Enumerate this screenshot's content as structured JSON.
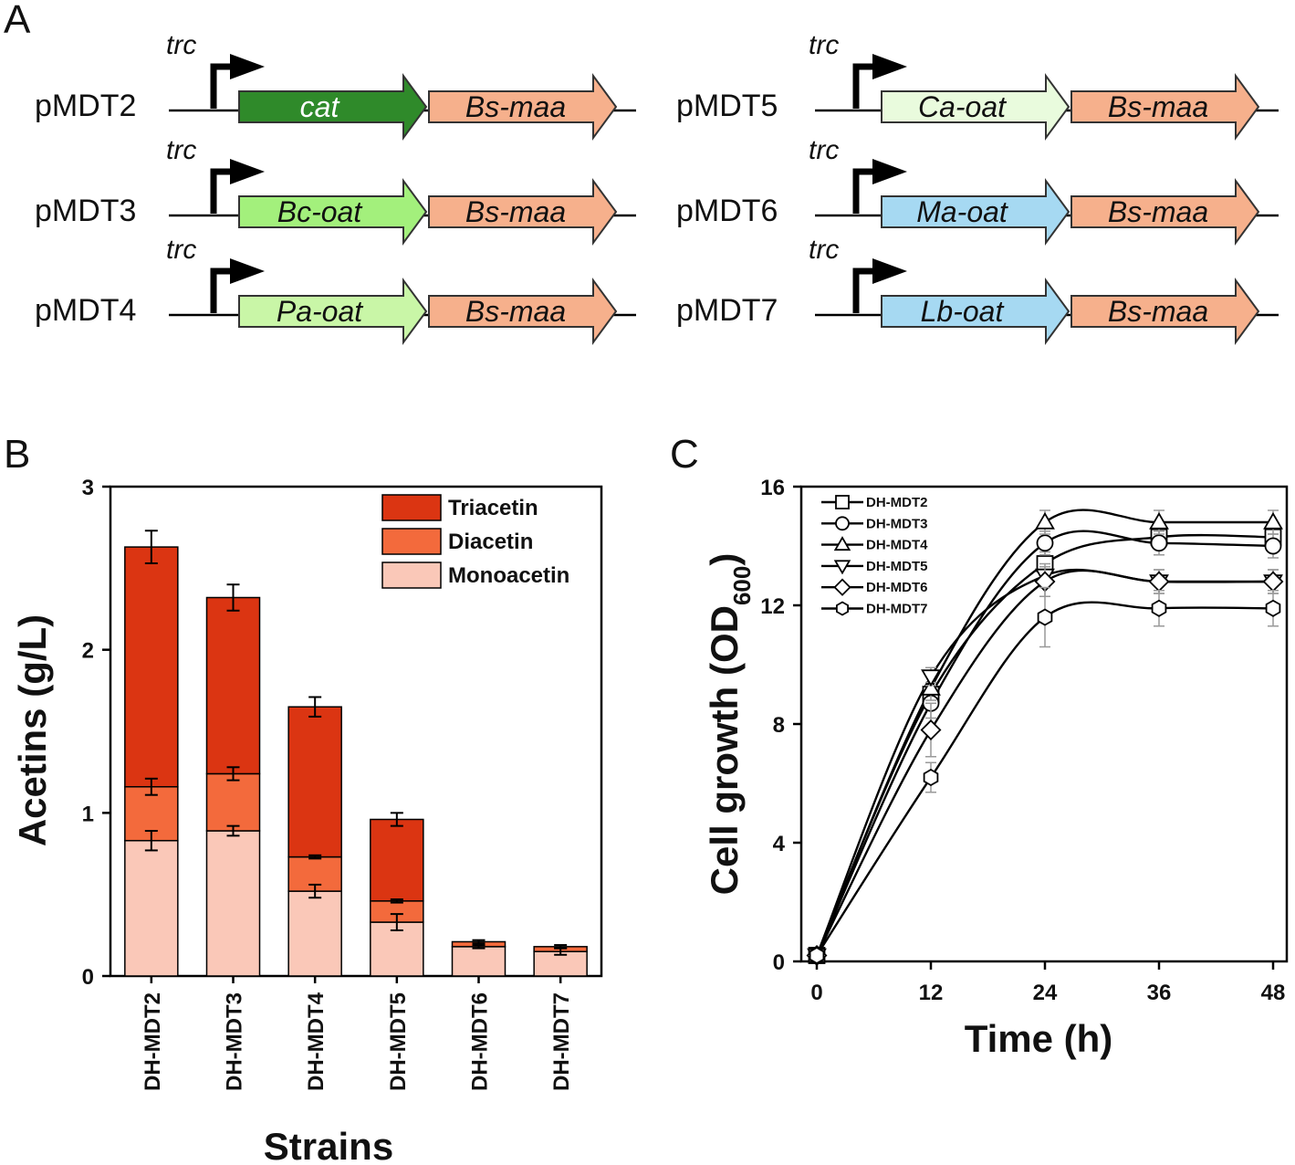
{
  "panels": {
    "a": {
      "letter": "A",
      "promoter": "trc",
      "constructs": [
        {
          "name": "pMDT2",
          "gene1": "cat",
          "gene1_color": "#2f8a2a",
          "gene1_text_color": "#ffffff",
          "gene2": "Bs-maa",
          "gene2_color": "#f6b08c"
        },
        {
          "name": "pMDT3",
          "gene1": "Bc-oat",
          "gene1_color": "#a3f07c",
          "gene1_text_color": "#111111",
          "gene2": "Bs-maa",
          "gene2_color": "#f6b08c"
        },
        {
          "name": "pMDT4",
          "gene1": "Pa-oat",
          "gene1_color": "#c9f6a7",
          "gene1_text_color": "#111111",
          "gene2": "Bs-maa",
          "gene2_color": "#f6b08c"
        },
        {
          "name": "pMDT5",
          "gene1": "Ca-oat",
          "gene1_color": "#e9fbdd",
          "gene1_text_color": "#111111",
          "gene2": "Bs-maa",
          "gene2_color": "#f6b08c"
        },
        {
          "name": "pMDT6",
          "gene1": "Ma-oat",
          "gene1_color": "#a6d9f2",
          "gene1_text_color": "#111111",
          "gene2": "Bs-maa",
          "gene2_color": "#f6b08c"
        },
        {
          "name": "pMDT7",
          "gene1": "Lb-oat",
          "gene1_color": "#a6d9f2",
          "gene1_text_color": "#111111",
          "gene2": "Bs-maa",
          "gene2_color": "#f6b08c"
        }
      ]
    },
    "b": {
      "letter": "B"
    },
    "c": {
      "letter": "C"
    }
  },
  "chart_data": [
    {
      "type": "bar",
      "stacked": true,
      "ylabel": "Acetins (g/L)",
      "xlabel": "Strains",
      "ylim": [
        0,
        3
      ],
      "yticks": [
        "0",
        "1",
        "2",
        "3"
      ],
      "categories": [
        "DH-MDT2",
        "DH-MDT3",
        "DH-MDT4",
        "DH-MDT5",
        "DH-MDT6",
        "DH-MDT7"
      ],
      "legend_position": "top-right",
      "series": [
        {
          "name": "Monoacetin",
          "color": "#fac8b8",
          "values": [
            0.83,
            0.89,
            0.52,
            0.33,
            0.18,
            0.15
          ],
          "errors": [
            0.06,
            0.03,
            0.04,
            0.05,
            0.01,
            0.02
          ]
        },
        {
          "name": "Diacetin",
          "color": "#f36a3c",
          "values": [
            0.33,
            0.35,
            0.21,
            0.13,
            0.03,
            0.03
          ],
          "errors": [
            0.05,
            0.04,
            0.01,
            0.01,
            0.01,
            0.01
          ]
        },
        {
          "name": "Triacetin",
          "color": "#db3512",
          "values": [
            1.47,
            1.08,
            0.92,
            0.5,
            0.0,
            0.0
          ],
          "errors": [
            0.1,
            0.08,
            0.06,
            0.04,
            0.0,
            0.0
          ]
        }
      ],
      "legend_order": [
        "Triacetin",
        "Diacetin",
        "Monoacetin"
      ]
    },
    {
      "type": "line",
      "xlabel": "Time (h)",
      "ylabel_main": "Cell growth (OD",
      "ylabel_sub": "600",
      "ylabel_close": ")",
      "xlim": [
        0,
        48
      ],
      "ylim": [
        0,
        16
      ],
      "xticks": [
        "0",
        "12",
        "24",
        "36",
        "48"
      ],
      "yticks": [
        "0",
        "4",
        "8",
        "12",
        "16"
      ],
      "x": [
        0,
        12,
        24,
        36,
        48
      ],
      "legend_position": "top-left",
      "series": [
        {
          "name": "DH-MDT2",
          "marker": "square",
          "values": [
            0.2,
            9.0,
            13.4,
            14.3,
            14.3
          ],
          "errors": [
            0.1,
            0.4,
            0.4,
            0.4,
            0.4
          ]
        },
        {
          "name": "DH-MDT3",
          "marker": "circle",
          "values": [
            0.2,
            8.7,
            14.1,
            14.1,
            14.0
          ],
          "errors": [
            0.1,
            0.5,
            0.4,
            0.4,
            0.4
          ]
        },
        {
          "name": "DH-MDT4",
          "marker": "triangle-up",
          "values": [
            0.2,
            9.2,
            14.8,
            14.8,
            14.8
          ],
          "errors": [
            0.1,
            0.4,
            0.4,
            0.4,
            0.4
          ]
        },
        {
          "name": "DH-MDT5",
          "marker": "triangle-down",
          "values": [
            0.2,
            9.6,
            13.0,
            12.8,
            12.8
          ],
          "errors": [
            0.1,
            0.3,
            0.4,
            0.4,
            0.4
          ]
        },
        {
          "name": "DH-MDT6",
          "marker": "diamond",
          "values": [
            0.2,
            7.8,
            12.8,
            12.8,
            12.8
          ],
          "errors": [
            0.1,
            0.9,
            0.5,
            0.4,
            0.4
          ]
        },
        {
          "name": "DH-MDT7",
          "marker": "hexagon",
          "values": [
            0.2,
            6.2,
            11.6,
            11.9,
            11.9
          ],
          "errors": [
            0.1,
            0.5,
            1.0,
            0.6,
            0.6
          ]
        }
      ]
    }
  ]
}
